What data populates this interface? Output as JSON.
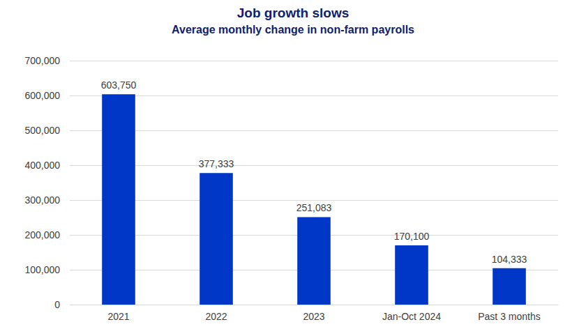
{
  "chart_data": {
    "type": "bar",
    "title": "Job growth slows",
    "subtitle": "Average monthly change in non-farm payrolls",
    "categories": [
      "2021",
      "2022",
      "2023",
      "Jan-Oct 2024",
      "Past 3 months"
    ],
    "values": [
      603750,
      377333,
      251083,
      170100,
      104333
    ],
    "value_labels": [
      "603,750",
      "377,333",
      "251,083",
      "170,100",
      "104,333"
    ],
    "color": "#0037c6",
    "ylim": [
      0,
      700000
    ],
    "yticks": [
      0,
      {
        "value": 100000,
        "label": "100,000"
      },
      {
        "value": 200000,
        "label": "200,000"
      },
      {
        "value": 300000,
        "label": "300,000"
      },
      {
        "value": 400000,
        "label": "400,000"
      },
      {
        "value": 500000,
        "label": "500,000"
      },
      {
        "value": 600000,
        "label": "600,000"
      },
      {
        "value": 700000,
        "label": "700,000"
      }
    ],
    "grid": true,
    "data_labels": true
  }
}
